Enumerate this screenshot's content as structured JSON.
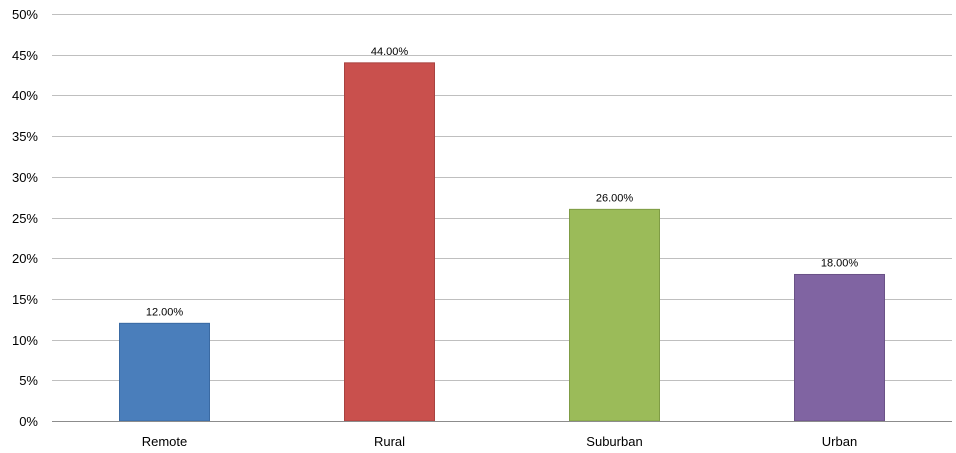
{
  "chart_data": {
    "type": "bar",
    "categories": [
      "Remote",
      "Rural",
      "Suburban",
      "Urban"
    ],
    "values": [
      12,
      44,
      26,
      18
    ],
    "data_labels": [
      "12.00%",
      "44.00%",
      "26.00%",
      "18.00%"
    ],
    "colors": [
      "#4a7ebb",
      "#c9504d",
      "#9bbb59",
      "#8064a2"
    ],
    "border_colors": [
      "#3a6aa3",
      "#a84240",
      "#7f9c45",
      "#6a5287"
    ],
    "title": "",
    "xlabel": "",
    "ylabel": "",
    "ylim": [
      0,
      50
    ],
    "y_ticks": [
      0,
      5,
      10,
      15,
      20,
      25,
      30,
      35,
      40,
      45,
      50
    ],
    "y_tick_labels": [
      "0%",
      "5%",
      "10%",
      "15%",
      "20%",
      "25%",
      "30%",
      "35%",
      "40%",
      "45%",
      "50%"
    ],
    "grid": true,
    "legend": "none"
  }
}
